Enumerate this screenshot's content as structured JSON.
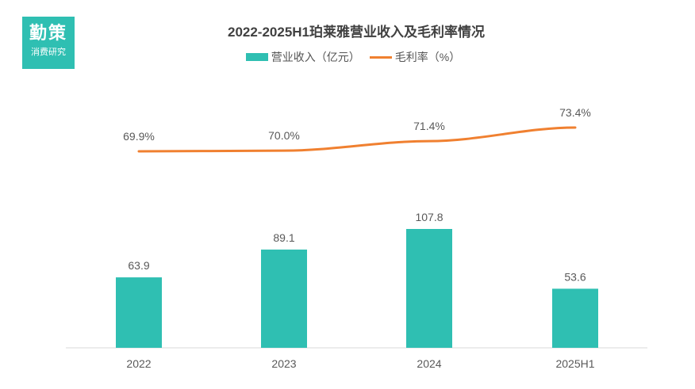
{
  "logo": {
    "main": "勤策",
    "sub": "消费研究"
  },
  "colors": {
    "bar": "#2fbfb2",
    "line": "#f08030",
    "axis": "#d9d9d9",
    "text": "#595959"
  },
  "chart_data": {
    "type": "bar",
    "title": "2022-2025H1珀莱雅营业收入及毛利率情况",
    "categories": [
      "2022",
      "2023",
      "2024",
      "2025H1"
    ],
    "series": [
      {
        "name": "营业收入（亿元）",
        "kind": "bar",
        "values": [
          63.9,
          89.1,
          107.8,
          53.6
        ],
        "labels": [
          "63.9",
          "89.1",
          "107.8",
          "53.6"
        ]
      },
      {
        "name": "毛利率（%）",
        "kind": "line",
        "values": [
          69.9,
          70.0,
          71.4,
          73.4
        ],
        "labels": [
          "69.9%",
          "70.0%",
          "71.4%",
          "73.4%"
        ]
      }
    ],
    "bar_ylim": [
      0,
      170
    ],
    "line_ylim": [
      0,
      79
    ],
    "legend_position": "top-center",
    "xlabel": "",
    "ylabel": ""
  }
}
